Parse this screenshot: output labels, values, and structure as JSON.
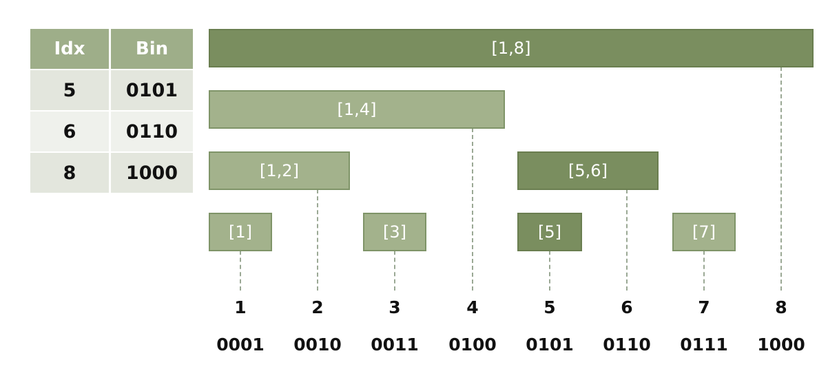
{
  "table": {
    "headers": [
      "Idx",
      "Bin"
    ],
    "rows": [
      {
        "idx": "5",
        "bin": "0101"
      },
      {
        "idx": "6",
        "bin": "0110"
      },
      {
        "idx": "8",
        "bin": "1000"
      }
    ]
  },
  "boxes": {
    "b1_8": "[1,8]",
    "b1_4": "[1,4]",
    "b1_2": "[1,2]",
    "b5_6": "[5,6]",
    "b1": "[1]",
    "b3": "[3]",
    "b5": "[5]",
    "b7": "[7]"
  },
  "indices": [
    "1",
    "2",
    "3",
    "4",
    "5",
    "6",
    "7",
    "8"
  ],
  "binaries": [
    "0001",
    "0010",
    "0011",
    "0100",
    "0101",
    "0110",
    "0111",
    "1000"
  ]
}
